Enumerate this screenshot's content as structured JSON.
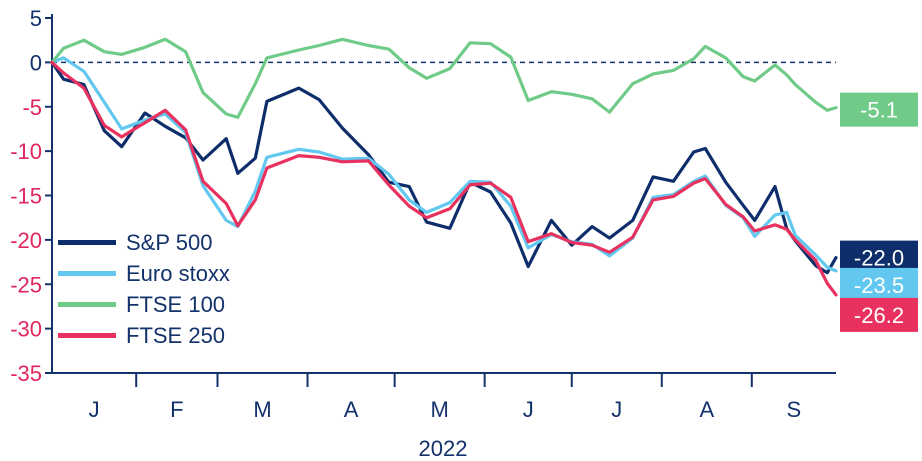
{
  "chart_data": {
    "type": "line",
    "xlabel": "2022",
    "ylabel": "",
    "ylim": [
      -35,
      5
    ],
    "yticks": [
      5,
      0,
      -5,
      -10,
      -15,
      -20,
      -25,
      -30,
      -35
    ],
    "month_labels": [
      "J",
      "F",
      "M",
      "A",
      "M",
      "J",
      "J",
      "A",
      "S"
    ],
    "x_range": [
      "2022-01-03",
      "2022-09-30"
    ],
    "zero_line": "dashed",
    "legend_position": "bottom-left",
    "colors": {
      "axis": "#13326b",
      "negative_ticks": "#e0265e",
      "zero_line": "#13326b"
    },
    "series": [
      {
        "name": "S&P 500",
        "color": "#0e2e6b",
        "end_label": "-22.0",
        "points": [
          [
            "2022-01-03",
            0
          ],
          [
            "2022-01-07",
            -1.9
          ],
          [
            "2022-01-14",
            -2.5
          ],
          [
            "2022-01-21",
            -7.7
          ],
          [
            "2022-01-27",
            -9.5
          ],
          [
            "2022-02-04",
            -5.7
          ],
          [
            "2022-02-11",
            -7.2
          ],
          [
            "2022-02-18",
            -8.5
          ],
          [
            "2022-02-24",
            -11
          ],
          [
            "2022-03-04",
            -8.6
          ],
          [
            "2022-03-08",
            -12.5
          ],
          [
            "2022-03-14",
            -10.8
          ],
          [
            "2022-03-18",
            -4.4
          ],
          [
            "2022-03-29",
            -2.9
          ],
          [
            "2022-04-05",
            -4.2
          ],
          [
            "2022-04-13",
            -7.4
          ],
          [
            "2022-04-22",
            -10.4
          ],
          [
            "2022-04-29",
            -13.5
          ],
          [
            "2022-05-06",
            -14
          ],
          [
            "2022-05-12",
            -18
          ],
          [
            "2022-05-20",
            -18.7
          ],
          [
            "2022-05-27",
            -13.5
          ],
          [
            "2022-06-03",
            -14.6
          ],
          [
            "2022-06-10",
            -18.1
          ],
          [
            "2022-06-16",
            -23
          ],
          [
            "2022-06-24",
            -17.8
          ],
          [
            "2022-07-01",
            -20.6
          ],
          [
            "2022-07-08",
            -18.5
          ],
          [
            "2022-07-14",
            -19.8
          ],
          [
            "2022-07-22",
            -17.8
          ],
          [
            "2022-07-29",
            -12.9
          ],
          [
            "2022-08-05",
            -13.4
          ],
          [
            "2022-08-12",
            -10.1
          ],
          [
            "2022-08-16",
            -9.7
          ],
          [
            "2022-08-23",
            -13.5
          ],
          [
            "2022-08-29",
            -16.1
          ],
          [
            "2022-09-02",
            -17.8
          ],
          [
            "2022-09-09",
            -14
          ],
          [
            "2022-09-13",
            -18.7
          ],
          [
            "2022-09-16",
            -20.1
          ],
          [
            "2022-09-23",
            -22.9
          ],
          [
            "2022-09-27",
            -23.7
          ],
          [
            "2022-09-30",
            -22
          ]
        ]
      },
      {
        "name": "Euro stoxx",
        "color": "#62c8ef",
        "end_label": "-23.5",
        "points": [
          [
            "2022-01-03",
            0
          ],
          [
            "2022-01-07",
            0.5
          ],
          [
            "2022-01-14",
            -1
          ],
          [
            "2022-01-21",
            -4.5
          ],
          [
            "2022-01-27",
            -7.5
          ],
          [
            "2022-02-04",
            -6.5
          ],
          [
            "2022-02-11",
            -5.8
          ],
          [
            "2022-02-18",
            -7.9
          ],
          [
            "2022-02-24",
            -13.9
          ],
          [
            "2022-03-04",
            -17.8
          ],
          [
            "2022-03-08",
            -18.5
          ],
          [
            "2022-03-14",
            -14.5
          ],
          [
            "2022-03-18",
            -10.7
          ],
          [
            "2022-03-29",
            -9.8
          ],
          [
            "2022-04-05",
            -10.1
          ],
          [
            "2022-04-13",
            -10.9
          ],
          [
            "2022-04-22",
            -10.8
          ],
          [
            "2022-04-29",
            -12.6
          ],
          [
            "2022-05-06",
            -15.5
          ],
          [
            "2022-05-12",
            -16.9
          ],
          [
            "2022-05-20",
            -15.8
          ],
          [
            "2022-05-27",
            -13.4
          ],
          [
            "2022-06-03",
            -13.5
          ],
          [
            "2022-06-10",
            -16.2
          ],
          [
            "2022-06-16",
            -20.9
          ],
          [
            "2022-06-24",
            -19.4
          ],
          [
            "2022-07-01",
            -20.2
          ],
          [
            "2022-07-08",
            -20.5
          ],
          [
            "2022-07-14",
            -21.8
          ],
          [
            "2022-07-22",
            -19.8
          ],
          [
            "2022-07-29",
            -15.2
          ],
          [
            "2022-08-05",
            -14.9
          ],
          [
            "2022-08-12",
            -13.4
          ],
          [
            "2022-08-16",
            -12.8
          ],
          [
            "2022-08-23",
            -16.1
          ],
          [
            "2022-08-29",
            -17.5
          ],
          [
            "2022-09-02",
            -19.6
          ],
          [
            "2022-09-09",
            -17.2
          ],
          [
            "2022-09-13",
            -16.9
          ],
          [
            "2022-09-16",
            -19.5
          ],
          [
            "2022-09-23",
            -21.7
          ],
          [
            "2022-09-27",
            -23.1
          ],
          [
            "2022-09-30",
            -23.5
          ]
        ]
      },
      {
        "name": "FTSE 100",
        "color": "#6fcb87",
        "end_label": "-5.1",
        "points": [
          [
            "2022-01-03",
            0
          ],
          [
            "2022-01-07",
            1.6
          ],
          [
            "2022-01-14",
            2.5
          ],
          [
            "2022-01-21",
            1.2
          ],
          [
            "2022-01-27",
            0.9
          ],
          [
            "2022-02-04",
            1.7
          ],
          [
            "2022-02-11",
            2.6
          ],
          [
            "2022-02-18",
            1.2
          ],
          [
            "2022-02-24",
            -3.4
          ],
          [
            "2022-03-04",
            -5.8
          ],
          [
            "2022-03-08",
            -6.2
          ],
          [
            "2022-03-14",
            -2.4
          ],
          [
            "2022-03-18",
            0.5
          ],
          [
            "2022-03-29",
            1.4
          ],
          [
            "2022-04-05",
            1.9
          ],
          [
            "2022-04-13",
            2.6
          ],
          [
            "2022-04-22",
            1.9
          ],
          [
            "2022-04-29",
            1.5
          ],
          [
            "2022-05-06",
            -0.6
          ],
          [
            "2022-05-12",
            -1.8
          ],
          [
            "2022-05-20",
            -0.7
          ],
          [
            "2022-05-27",
            2.2
          ],
          [
            "2022-06-03",
            2.1
          ],
          [
            "2022-06-10",
            0.6
          ],
          [
            "2022-06-16",
            -4.3
          ],
          [
            "2022-06-24",
            -3.3
          ],
          [
            "2022-07-01",
            -3.6
          ],
          [
            "2022-07-08",
            -4.1
          ],
          [
            "2022-07-14",
            -5.6
          ],
          [
            "2022-07-22",
            -2.4
          ],
          [
            "2022-07-29",
            -1.3
          ],
          [
            "2022-08-05",
            -0.9
          ],
          [
            "2022-08-12",
            0.4
          ],
          [
            "2022-08-16",
            1.8
          ],
          [
            "2022-08-23",
            0.5
          ],
          [
            "2022-08-29",
            -1.6
          ],
          [
            "2022-09-02",
            -2.1
          ],
          [
            "2022-09-09",
            -0.3
          ],
          [
            "2022-09-13",
            -1.4
          ],
          [
            "2022-09-16",
            -2.5
          ],
          [
            "2022-09-23",
            -4.5
          ],
          [
            "2022-09-27",
            -5.4
          ],
          [
            "2022-09-30",
            -5.1
          ]
        ]
      },
      {
        "name": "FTSE 250",
        "color": "#e8315e",
        "end_label": "-26.2",
        "points": [
          [
            "2022-01-03",
            0
          ],
          [
            "2022-01-07",
            -1.2
          ],
          [
            "2022-01-14",
            -2.9
          ],
          [
            "2022-01-21",
            -7.1
          ],
          [
            "2022-01-27",
            -8.4
          ],
          [
            "2022-02-04",
            -6.8
          ],
          [
            "2022-02-11",
            -5.4
          ],
          [
            "2022-02-18",
            -7.6
          ],
          [
            "2022-02-24",
            -13.4
          ],
          [
            "2022-03-04",
            -15.9
          ],
          [
            "2022-03-08",
            -18.4
          ],
          [
            "2022-03-14",
            -15.5
          ],
          [
            "2022-03-18",
            -11.9
          ],
          [
            "2022-03-29",
            -10.5
          ],
          [
            "2022-04-05",
            -10.7
          ],
          [
            "2022-04-13",
            -11.2
          ],
          [
            "2022-04-22",
            -11.1
          ],
          [
            "2022-04-29",
            -13.8
          ],
          [
            "2022-05-06",
            -16.2
          ],
          [
            "2022-05-12",
            -17.5
          ],
          [
            "2022-05-20",
            -16.5
          ],
          [
            "2022-05-27",
            -13.8
          ],
          [
            "2022-06-03",
            -13.6
          ],
          [
            "2022-06-10",
            -15.2
          ],
          [
            "2022-06-16",
            -20.2
          ],
          [
            "2022-06-24",
            -19.3
          ],
          [
            "2022-07-01",
            -20.3
          ],
          [
            "2022-07-08",
            -20.6
          ],
          [
            "2022-07-14",
            -21.4
          ],
          [
            "2022-07-22",
            -19.7
          ],
          [
            "2022-07-29",
            -15.5
          ],
          [
            "2022-08-05",
            -15.1
          ],
          [
            "2022-08-12",
            -13.6
          ],
          [
            "2022-08-16",
            -13.1
          ],
          [
            "2022-08-23",
            -16
          ],
          [
            "2022-08-29",
            -17.4
          ],
          [
            "2022-09-02",
            -19
          ],
          [
            "2022-09-09",
            -18.3
          ],
          [
            "2022-09-13",
            -18.8
          ],
          [
            "2022-09-16",
            -20
          ],
          [
            "2022-09-23",
            -22.3
          ],
          [
            "2022-09-27",
            -24.9
          ],
          [
            "2022-09-30",
            -26.2
          ]
        ]
      }
    ]
  }
}
